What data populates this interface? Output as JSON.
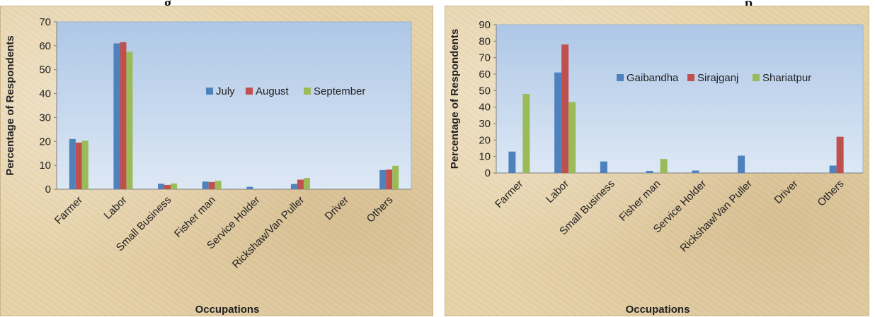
{
  "top_titles": {
    "left": "g",
    "right": "p"
  },
  "chart_data": [
    {
      "type": "bar",
      "title": "",
      "xlabel": "Occupations",
      "ylabel": "Percentage of Respondents",
      "categories": [
        "Farmer",
        "Labor",
        "Small Business",
        "Fisher man",
        "Service Holder",
        "Rickshaw/Van Puller",
        "Driver",
        "Others"
      ],
      "series": [
        {
          "name": "July",
          "color": "#4f81bd",
          "values": [
            21,
            61,
            2.3,
            3.2,
            1.0,
            2.2,
            0,
            8
          ]
        },
        {
          "name": "August",
          "color": "#c0504d",
          "values": [
            19.5,
            61.5,
            1.8,
            3.0,
            0,
            4.0,
            0,
            8.2
          ]
        },
        {
          "name": "September",
          "color": "#9bbb59",
          "values": [
            20.3,
            57.5,
            2.4,
            3.5,
            0,
            4.7,
            0,
            9.8
          ]
        }
      ],
      "ylim": [
        0,
        70
      ],
      "yticks": [
        0,
        10,
        20,
        30,
        40,
        50,
        60,
        70
      ],
      "grid": false,
      "legend": "center-right"
    },
    {
      "type": "bar",
      "title": "",
      "xlabel": "Occupations",
      "ylabel": "Percentage of Respondents",
      "categories": [
        "Farmer",
        "Labor",
        "Small Business",
        "Fisher man",
        "Service Holder",
        "Rickshaw/Van Puller",
        "Driver",
        "Others"
      ],
      "series": [
        {
          "name": "Gaibandha",
          "color": "#4f81bd",
          "values": [
            13,
            61,
            7,
            1.3,
            1.5,
            10.5,
            0,
            4.5
          ]
        },
        {
          "name": "Sirajganj",
          "color": "#c0504d",
          "values": [
            0,
            78,
            0,
            0,
            0,
            0,
            0,
            22
          ]
        },
        {
          "name": "Shariatpur",
          "color": "#9bbb59",
          "values": [
            48,
            43,
            0,
            8.5,
            0,
            0,
            0,
            0
          ]
        }
      ],
      "ylim": [
        0,
        90
      ],
      "yticks": [
        0,
        10,
        20,
        30,
        40,
        50,
        60,
        70,
        80,
        90
      ],
      "grid": false,
      "legend": "top-right"
    }
  ]
}
